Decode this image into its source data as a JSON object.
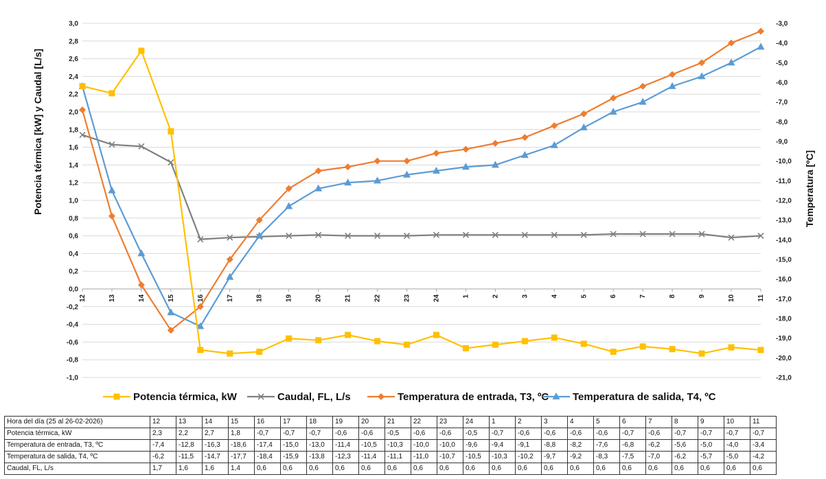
{
  "chart_data": {
    "type": "line",
    "title": "",
    "xlabel": "",
    "ylabel": "Potencia térmica [kW] y Caudal [L/s]",
    "y2label": "Temperatura [ºC]",
    "x": [
      "12",
      "13",
      "14",
      "15",
      "16",
      "17",
      "18",
      "19",
      "20",
      "21",
      "22",
      "23",
      "24",
      "1",
      "2",
      "3",
      "4",
      "5",
      "6",
      "7",
      "8",
      "9",
      "10",
      "11"
    ],
    "ylim": [
      -1.0,
      3.0
    ],
    "y_ticks": [
      "3,0",
      "2,8",
      "2,6",
      "2,4",
      "2,2",
      "2,0",
      "1,8",
      "1,6",
      "1,4",
      "1,2",
      "1,0",
      "0,8",
      "0,6",
      "0,4",
      "0,2",
      "0,0",
      "-0,2",
      "-0,4",
      "-0,6",
      "-0,8",
      "-1,0"
    ],
    "y2lim": [
      -21.0,
      -3.0
    ],
    "y2_ticks": [
      "-3,0",
      "-4,0",
      "-5,0",
      "-6,0",
      "-7,0",
      "-8,0",
      "-9,0",
      "-10,0",
      "-11,0",
      "-12,0",
      "-13,0",
      "-14,0",
      "-15,0",
      "-16,0",
      "-17,0",
      "-18,0",
      "-19,0",
      "-20,0",
      "-21,0"
    ],
    "grid": true,
    "legend_position": "bottom",
    "series": [
      {
        "name": "Potencia térmica, kW",
        "axis": "left",
        "color": "#FFC000",
        "marker": "square",
        "values": [
          2.29,
          2.21,
          2.69,
          1.78,
          -0.69,
          -0.73,
          -0.71,
          -0.56,
          -0.58,
          -0.52,
          -0.59,
          -0.63,
          -0.52,
          -0.67,
          -0.63,
          -0.59,
          -0.55,
          -0.62,
          -0.71,
          -0.65,
          -0.68,
          -0.73,
          -0.66,
          -0.69
        ]
      },
      {
        "name": "Caudal, FL, L/s",
        "axis": "left",
        "color": "#7F7F7F",
        "marker": "x",
        "values": [
          1.74,
          1.63,
          1.61,
          1.43,
          0.56,
          0.58,
          0.59,
          0.6,
          0.61,
          0.6,
          0.6,
          0.6,
          0.61,
          0.61,
          0.61,
          0.61,
          0.61,
          0.61,
          0.62,
          0.62,
          0.62,
          0.62,
          0.58,
          0.6
        ]
      },
      {
        "name": "Temperatura de entrada, T3, ºC",
        "axis": "right",
        "color": "#ED7D31",
        "marker": "diamond",
        "values": [
          -7.4,
          -12.8,
          -16.3,
          -18.6,
          -17.4,
          -15.0,
          -13.0,
          -11.4,
          -10.5,
          -10.3,
          -10.0,
          -10.0,
          -9.6,
          -9.4,
          -9.1,
          -8.8,
          -8.2,
          -7.6,
          -6.8,
          -6.2,
          -5.6,
          -5.0,
          -4.0,
          -3.4
        ]
      },
      {
        "name": "Temperatura de salida, T4, ºC",
        "axis": "right",
        "color": "#5B9BD5",
        "marker": "triangle",
        "values": [
          -6.2,
          -11.5,
          -14.7,
          -17.7,
          -18.4,
          -15.9,
          -13.8,
          -12.3,
          -11.4,
          -11.1,
          -11.0,
          -10.7,
          -10.5,
          -10.3,
          -10.2,
          -9.7,
          -9.2,
          -8.3,
          -7.5,
          -7.0,
          -6.2,
          -5.7,
          -5.0,
          -4.2
        ]
      }
    ]
  },
  "table": {
    "header": "Hora del día (25 al 26-02-2026)",
    "columns": [
      "12",
      "13",
      "14",
      "15",
      "16",
      "17",
      "18",
      "19",
      "20",
      "21",
      "22",
      "23",
      "24",
      "1",
      "2",
      "3",
      "4",
      "5",
      "6",
      "7",
      "8",
      "9",
      "10",
      "11"
    ],
    "rows": [
      {
        "label": "Potencia térmica, kW",
        "values": [
          "2,3",
          "2,2",
          "2,7",
          "1,8",
          "-0,7",
          "-0,7",
          "-0,7",
          "-0,6",
          "-0,6",
          "-0,5",
          "-0,6",
          "-0,6",
          "-0,5",
          "-0,7",
          "-0,6",
          "-0,6",
          "-0,6",
          "-0,6",
          "-0,7",
          "-0,6",
          "-0,7",
          "-0,7",
          "-0,7",
          "-0,7"
        ]
      },
      {
        "label": "Temperatura de entrada, T3, ºC",
        "values": [
          "-7,4",
          "-12,8",
          "-16,3",
          "-18,6",
          "-17,4",
          "-15,0",
          "-13,0",
          "-11,4",
          "-10,5",
          "-10,3",
          "-10,0",
          "-10,0",
          "-9,6",
          "-9,4",
          "-9,1",
          "-8,8",
          "-8,2",
          "-7,6",
          "-6,8",
          "-6,2",
          "-5,6",
          "-5,0",
          "-4,0",
          "-3,4"
        ]
      },
      {
        "label": "Temperatura de salida, T4, ºC",
        "values": [
          "-6,2",
          "-11,5",
          "-14,7",
          "-17,7",
          "-18,4",
          "-15,9",
          "-13,8",
          "-12,3",
          "-11,4",
          "-11,1",
          "-11,0",
          "-10,7",
          "-10,5",
          "-10,3",
          "-10,2",
          "-9,7",
          "-9,2",
          "-8,3",
          "-7,5",
          "-7,0",
          "-6,2",
          "-5,7",
          "-5,0",
          "-4,2"
        ]
      },
      {
        "label": "Caudal, FL, L/s",
        "values": [
          "1,7",
          "1,6",
          "1,6",
          "1,4",
          "0,6",
          "0,6",
          "0,6",
          "0,6",
          "0,6",
          "0,6",
          "0,6",
          "0,6",
          "0,6",
          "0,6",
          "0,6",
          "0,6",
          "0,6",
          "0,6",
          "0,6",
          "0,6",
          "0,6",
          "0,6",
          "0,6",
          "0,6"
        ]
      }
    ]
  }
}
